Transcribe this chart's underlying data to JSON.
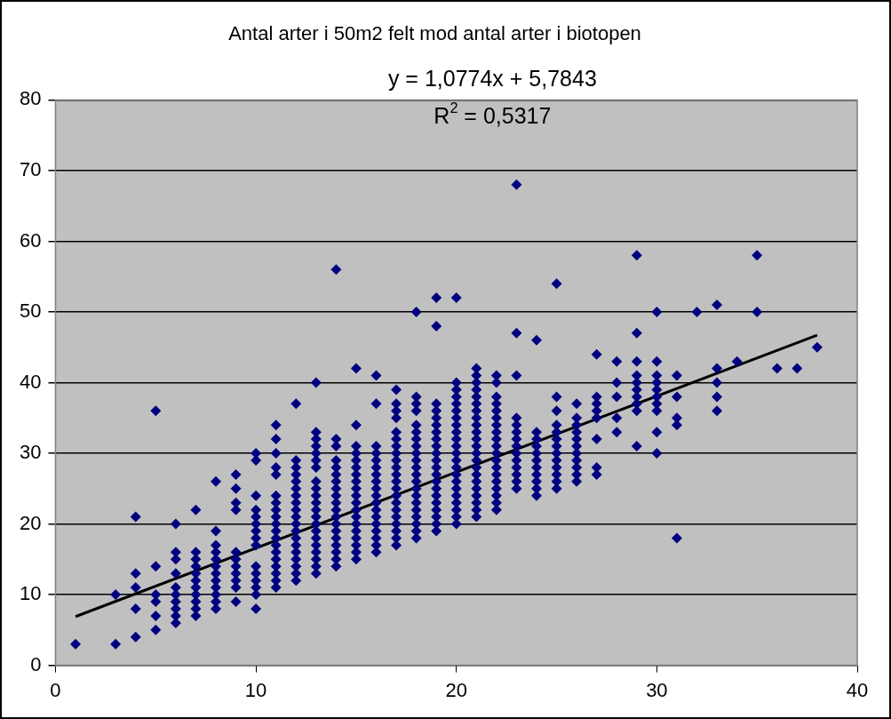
{
  "chart_data": {
    "type": "scatter",
    "title": "Antal arter i 50m2 felt mod antal arter i biotopen",
    "annotations": [
      "y = 1,0774x + 5,7843",
      "R$^{2}$ = 0,5317"
    ],
    "xlim": [
      0,
      40
    ],
    "xticks": [
      0,
      10,
      20,
      30,
      40
    ],
    "ylim": [
      0,
      80
    ],
    "yticks": [
      0,
      10,
      20,
      30,
      40,
      50,
      60,
      70,
      80
    ],
    "grid": "y",
    "legend": false,
    "marker": "diamond",
    "series": [
      {
        "type": "scatter",
        "color": "#000080",
        "x": [
          1,
          3,
          3,
          4,
          4,
          4,
          4,
          4,
          5,
          5,
          5,
          5,
          5,
          5,
          6,
          6,
          6,
          6,
          6,
          6,
          6,
          6,
          6,
          6,
          7,
          7,
          7,
          7,
          7,
          7,
          7,
          7,
          7,
          7,
          7,
          8,
          8,
          8,
          8,
          8,
          8,
          8,
          8,
          8,
          8,
          8,
          8,
          9,
          9,
          9,
          9,
          9,
          9,
          9,
          9,
          9,
          9,
          9,
          10,
          10,
          10,
          10,
          10,
          10,
          10,
          10,
          10,
          10,
          10,
          10,
          10,
          10,
          10,
          11,
          11,
          11,
          11,
          11,
          11,
          11,
          11,
          11,
          11,
          11,
          11,
          11,
          11,
          11,
          11,
          11,
          11,
          11,
          12,
          12,
          12,
          12,
          12,
          12,
          12,
          12,
          12,
          12,
          12,
          12,
          12,
          12,
          12,
          12,
          12,
          12,
          12,
          13,
          13,
          13,
          13,
          13,
          13,
          13,
          13,
          13,
          13,
          13,
          13,
          13,
          13,
          13,
          13,
          13,
          13,
          13,
          13,
          13,
          14,
          14,
          14,
          14,
          14,
          14,
          14,
          14,
          14,
          14,
          14,
          14,
          14,
          14,
          14,
          14,
          14,
          14,
          14,
          15,
          15,
          15,
          15,
          15,
          15,
          15,
          15,
          15,
          15,
          15,
          15,
          15,
          15,
          15,
          15,
          15,
          15,
          15,
          16,
          16,
          16,
          16,
          16,
          16,
          16,
          16,
          16,
          16,
          16,
          16,
          16,
          16,
          16,
          16,
          16,
          16,
          17,
          17,
          17,
          17,
          17,
          17,
          17,
          17,
          17,
          17,
          17,
          17,
          17,
          17,
          17,
          17,
          17,
          17,
          17,
          17,
          17,
          18,
          18,
          18,
          18,
          18,
          18,
          18,
          18,
          18,
          18,
          18,
          18,
          18,
          18,
          18,
          18,
          18,
          18,
          18,
          18,
          18,
          19,
          19,
          19,
          19,
          19,
          19,
          19,
          19,
          19,
          19,
          19,
          19,
          19,
          19,
          19,
          19,
          19,
          19,
          19,
          19,
          19,
          20,
          20,
          20,
          20,
          20,
          20,
          20,
          20,
          20,
          20,
          20,
          20,
          20,
          20,
          20,
          20,
          20,
          20,
          20,
          20,
          20,
          20,
          21,
          21,
          21,
          21,
          21,
          21,
          21,
          21,
          21,
          21,
          21,
          21,
          21,
          21,
          21,
          21,
          21,
          21,
          21,
          21,
          21,
          21,
          22,
          22,
          22,
          22,
          22,
          22,
          22,
          22,
          22,
          22,
          22,
          22,
          22,
          22,
          22,
          22,
          22,
          22,
          22,
          23,
          23,
          23,
          23,
          23,
          23,
          23,
          23,
          23,
          23,
          23,
          23,
          23,
          23,
          24,
          24,
          24,
          24,
          24,
          24,
          24,
          24,
          24,
          24,
          24,
          25,
          25,
          25,
          25,
          25,
          25,
          25,
          25,
          25,
          25,
          25,
          25,
          25,
          26,
          26,
          26,
          26,
          26,
          26,
          26,
          26,
          26,
          26,
          26,
          27,
          27,
          27,
          27,
          27,
          27,
          27,
          27,
          28,
          28,
          28,
          28,
          28,
          29,
          29,
          29,
          29,
          29,
          29,
          29,
          29,
          29,
          29,
          30,
          30,
          30,
          30,
          30,
          30,
          30,
          30,
          30,
          30,
          31,
          31,
          31,
          31,
          31,
          32,
          33,
          33,
          33,
          33,
          33,
          34,
          35,
          35,
          36,
          37,
          38
        ],
        "values": [
          3,
          3,
          10,
          4,
          8,
          11,
          13,
          21,
          5,
          7,
          9,
          10,
          14,
          36,
          6,
          7,
          8,
          9,
          10,
          11,
          13,
          15,
          16,
          20,
          7,
          8,
          9,
          10,
          11,
          12,
          13,
          14,
          15,
          16,
          22,
          8,
          9,
          10,
          11,
          12,
          13,
          14,
          15,
          16,
          17,
          19,
          26,
          9,
          11,
          12,
          13,
          14,
          15,
          16,
          22,
          23,
          25,
          27,
          8,
          10,
          11,
          12,
          13,
          14,
          17,
          18,
          19,
          20,
          21,
          22,
          24,
          29,
          30,
          11,
          12,
          13,
          14,
          15,
          16,
          17,
          18,
          19,
          20,
          21,
          22,
          23,
          24,
          27,
          28,
          30,
          32,
          34,
          12,
          13,
          14,
          15,
          16,
          17,
          18,
          19,
          20,
          21,
          22,
          23,
          24,
          25,
          26,
          27,
          28,
          29,
          37,
          13,
          14,
          15,
          16,
          17,
          18,
          19,
          20,
          21,
          22,
          23,
          24,
          25,
          26,
          28,
          29,
          30,
          31,
          32,
          33,
          40,
          14,
          15,
          16,
          17,
          18,
          19,
          20,
          21,
          22,
          23,
          24,
          25,
          26,
          27,
          28,
          29,
          31,
          32,
          56,
          15,
          16,
          17,
          18,
          19,
          20,
          21,
          22,
          23,
          24,
          25,
          26,
          27,
          28,
          29,
          30,
          31,
          34,
          42,
          16,
          17,
          18,
          19,
          20,
          21,
          22,
          23,
          24,
          25,
          26,
          27,
          28,
          29,
          30,
          31,
          37,
          41,
          17,
          18,
          19,
          20,
          21,
          22,
          23,
          24,
          25,
          26,
          27,
          28,
          29,
          30,
          31,
          32,
          33,
          35,
          36,
          37,
          39,
          18,
          19,
          20,
          21,
          22,
          23,
          24,
          25,
          26,
          27,
          28,
          29,
          30,
          31,
          32,
          33,
          34,
          36,
          37,
          38,
          50,
          19,
          20,
          21,
          22,
          23,
          24,
          25,
          26,
          27,
          28,
          29,
          30,
          31,
          32,
          33,
          34,
          35,
          36,
          37,
          48,
          52,
          20,
          21,
          22,
          23,
          24,
          25,
          26,
          27,
          28,
          29,
          30,
          31,
          32,
          33,
          34,
          35,
          36,
          37,
          38,
          39,
          40,
          52,
          21,
          22,
          23,
          24,
          25,
          26,
          27,
          28,
          29,
          30,
          31,
          32,
          33,
          34,
          35,
          36,
          37,
          38,
          39,
          40,
          41,
          42,
          22,
          23,
          24,
          25,
          26,
          27,
          28,
          29,
          30,
          31,
          32,
          33,
          34,
          35,
          36,
          37,
          38,
          40,
          41,
          25,
          26,
          27,
          28,
          29,
          30,
          31,
          32,
          33,
          34,
          35,
          41,
          47,
          68,
          24,
          25,
          26,
          27,
          28,
          29,
          30,
          31,
          32,
          33,
          46,
          25,
          26,
          27,
          28,
          29,
          30,
          31,
          32,
          33,
          34,
          36,
          38,
          54,
          26,
          27,
          28,
          29,
          30,
          31,
          32,
          33,
          34,
          35,
          37,
          27,
          28,
          32,
          35,
          36,
          37,
          38,
          44,
          33,
          35,
          38,
          40,
          43,
          31,
          36,
          37,
          38,
          39,
          40,
          41,
          43,
          47,
          58,
          30,
          33,
          36,
          37,
          38,
          39,
          40,
          41,
          43,
          50,
          18,
          34,
          35,
          38,
          41,
          50,
          36,
          38,
          40,
          42,
          51,
          43,
          50,
          58,
          42,
          42,
          45
        ]
      },
      {
        "type": "line",
        "color": "#000000",
        "marker": "none",
        "x": [
          1,
          38
        ],
        "values": [
          6.9,
          46.7
        ]
      }
    ]
  }
}
